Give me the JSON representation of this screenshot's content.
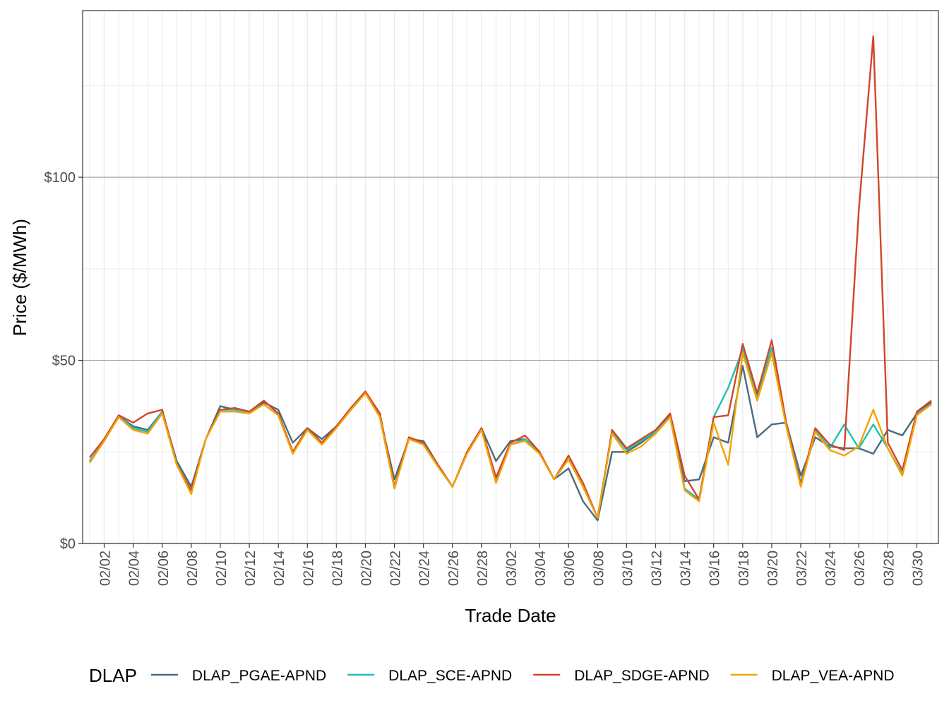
{
  "chart_data": {
    "type": "line",
    "x_label": "Trade Date",
    "y_label": "Price ($/MWh)",
    "legend_title": "DLAP",
    "legend_position": "bottom",
    "grid": true,
    "categories": [
      null,
      "02/02",
      null,
      "02/04",
      null,
      "02/06",
      null,
      "02/08",
      null,
      "02/10",
      null,
      "02/12",
      null,
      "02/14",
      null,
      "02/16",
      null,
      "02/18",
      null,
      "02/20",
      null,
      "02/22",
      null,
      "02/24",
      null,
      "02/26",
      null,
      "02/28",
      null,
      "03/02",
      null,
      "03/04",
      null,
      "03/06",
      null,
      "03/08",
      null,
      "03/10",
      null,
      "03/12",
      null,
      "03/14",
      null,
      "03/16",
      null,
      "03/18",
      null,
      "03/20",
      null,
      "03/22",
      null,
      "03/24",
      null,
      "03/26",
      null,
      "03/28",
      null,
      "03/30",
      null
    ],
    "ylim": [
      0,
      145.5
    ],
    "yticks": [
      {
        "value": 0,
        "label": "$0"
      },
      {
        "value": 50,
        "label": "$50"
      },
      {
        "value": 100,
        "label": "$100"
      }
    ],
    "series": [
      {
        "name": "DLAP_PGAE-APND",
        "color": "#4a6b7c",
        "values": [
          22.5,
          28,
          34.8,
          32,
          31,
          36,
          22.5,
          15.5,
          28.5,
          37.5,
          36.5,
          36,
          38.5,
          36.5,
          27.5,
          31.5,
          28.5,
          32,
          36.5,
          41.5,
          34.5,
          17.5,
          28.5,
          28,
          21.5,
          15.5,
          24.5,
          31.5,
          22.5,
          28,
          28.5,
          25,
          17.5,
          20.5,
          11.5,
          6.3,
          25,
          25,
          27.5,
          30.5,
          35,
          17,
          17.5,
          29,
          27.5,
          48.5,
          29,
          32.5,
          33,
          18.5,
          29,
          26.5,
          26,
          26,
          24.5,
          31,
          29.5,
          35.5,
          38.5
        ]
      },
      {
        "name": "DLAP_SCE-APND",
        "color": "#1fbfb8",
        "values": [
          22.5,
          28,
          34.8,
          31.5,
          30.5,
          36,
          21.5,
          14,
          28.5,
          36.5,
          36.5,
          36,
          38,
          35,
          24.5,
          31.5,
          27.5,
          32,
          37,
          41.5,
          34.5,
          15,
          29,
          27,
          21,
          15.5,
          24.5,
          31.5,
          17,
          27,
          28.5,
          25,
          17.5,
          23,
          15.5,
          7,
          30.5,
          25.5,
          28,
          30.5,
          34.5,
          15,
          12,
          34.5,
          42.5,
          53,
          40,
          53.5,
          33,
          16.5,
          31,
          26,
          32.5,
          26,
          32.5,
          26,
          19,
          35.5,
          38
        ]
      },
      {
        "name": "DLAP_SDGE-APND",
        "color": "#d1462a",
        "values": [
          23.5,
          28.5,
          35,
          33,
          35.5,
          36.5,
          21.5,
          14.5,
          28.5,
          36.5,
          37,
          36,
          39,
          35.5,
          25,
          31.5,
          27.5,
          32,
          37,
          41.5,
          35.5,
          15.5,
          29,
          27.5,
          21.5,
          15.5,
          25,
          31.5,
          18,
          27.5,
          29.5,
          25,
          17.5,
          24,
          16.5,
          7,
          31,
          26,
          28.5,
          31,
          35.5,
          18.5,
          12,
          34.5,
          35,
          54.5,
          41,
          55.5,
          33,
          16,
          31.5,
          27,
          25.5,
          91,
          138.5,
          27.5,
          20,
          36,
          39
        ]
      },
      {
        "name": "DLAP_VEA-APND",
        "color": "#f5a300",
        "values": [
          22,
          28,
          34.5,
          31,
          30,
          35.5,
          21.5,
          13.5,
          28.5,
          36,
          36,
          35.5,
          38,
          35,
          24.5,
          31,
          27,
          31.5,
          36.5,
          41,
          34.5,
          15,
          28.5,
          27,
          21,
          15.5,
          24.5,
          31,
          16.5,
          27,
          28,
          24.5,
          17.5,
          23,
          15.5,
          7,
          30,
          24.5,
          26.5,
          30,
          34.5,
          14.5,
          11.5,
          33,
          21.5,
          52,
          39,
          52,
          32,
          15.5,
          30.5,
          25.5,
          24,
          26.5,
          36.5,
          26,
          18.5,
          35,
          38
        ]
      }
    ]
  }
}
